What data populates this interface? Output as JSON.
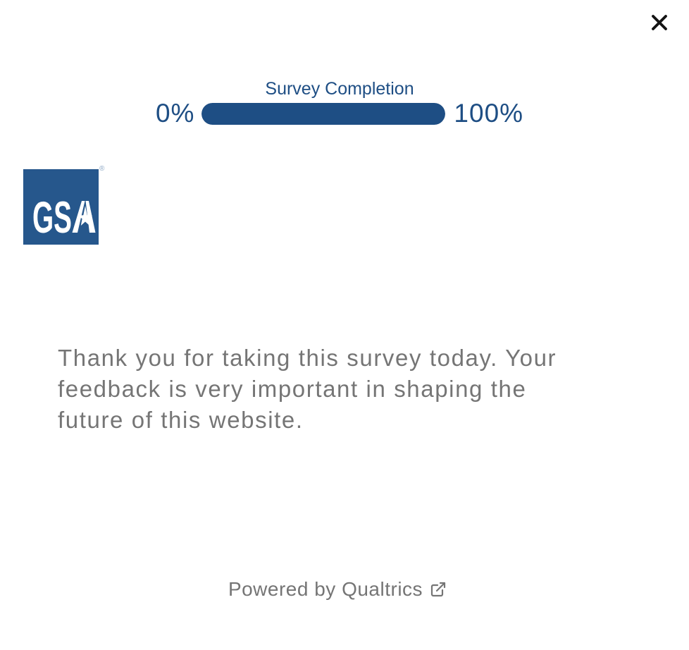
{
  "dialog": {
    "close_icon": "close-icon"
  },
  "progress": {
    "title": "Survey Completion",
    "min_label": "0%",
    "max_label": "100%",
    "percent": 100
  },
  "logo": {
    "full_text": "GSA",
    "letters_plain": "GS",
    "letter_star": "A",
    "registered_mark": "®"
  },
  "message": {
    "text": "Thank you for taking this survey today. Your feedback is very important in shaping the future of this website."
  },
  "footer": {
    "powered_by": "Powered by Qualtrics",
    "external_link_icon": "external-link-icon"
  },
  "colors": {
    "accent_navy": "#1E4E84",
    "logo_blue": "#26578C",
    "body_gray": "#757575",
    "close_black": "#141414"
  }
}
